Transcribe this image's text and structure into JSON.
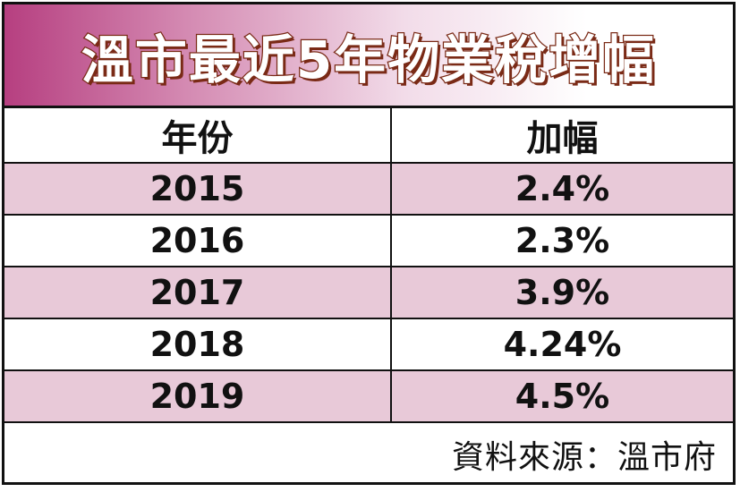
{
  "chart_data": {
    "type": "table",
    "title": "溫市最近5年物業稅增幅",
    "columns": [
      "年份",
      "加幅"
    ],
    "rows": [
      {
        "year": "2015",
        "increase": "2.4%"
      },
      {
        "year": "2016",
        "increase": "2.3%"
      },
      {
        "year": "2017",
        "increase": "3.9%"
      },
      {
        "year": "2018",
        "increase": "4.24%"
      },
      {
        "year": "2019",
        "increase": "4.5%"
      }
    ],
    "source": "資料來源：溫市府",
    "colors": {
      "title_gradient_start": "#b63f80",
      "title_text_stroke": "#7a2a16",
      "shaded_row": "#e8c9d8",
      "border": "#111111"
    }
  }
}
